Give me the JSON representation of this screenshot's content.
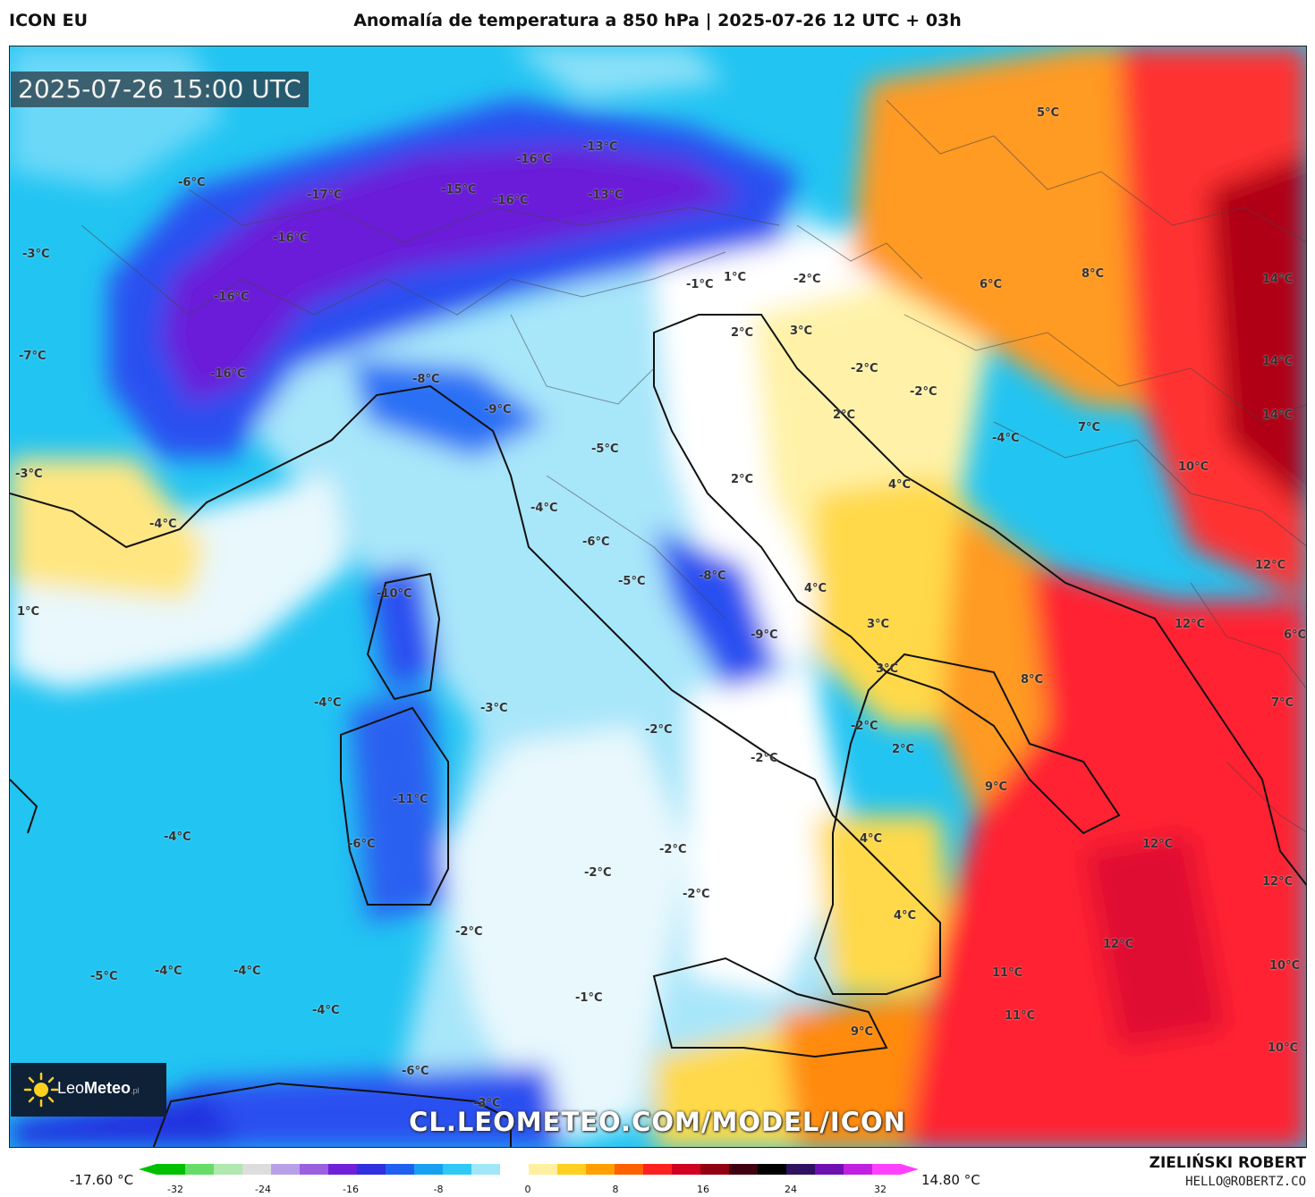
{
  "header": {
    "model": "ICON EU",
    "title": "Anomalía de temperatura a 850 hPa | 2025-07-26 12 UTC + 03h"
  },
  "map": {
    "timestamp": "2025-07-26 15:00 UTC",
    "url": "CL.LEOMETEO.COM/MODEL/ICON",
    "logo": {
      "name_light": "Leo",
      "name_bold": "Meteo",
      "suffix": ".pl",
      "icon": "sun-icon"
    },
    "labels": [
      {
        "text": "-6°C"
      },
      {
        "text": "-17°C"
      },
      {
        "text": "-16°C"
      },
      {
        "text": "-15°C"
      },
      {
        "text": "-16°C"
      },
      {
        "text": "-13°C"
      },
      {
        "text": "-13°C"
      },
      {
        "text": "-16°C"
      },
      {
        "text": "-16°C"
      },
      {
        "text": "-3°C"
      },
      {
        "text": "-7°C"
      },
      {
        "text": "-16°C"
      },
      {
        "text": "-8°C"
      },
      {
        "text": "-9°C"
      },
      {
        "text": "-5°C"
      },
      {
        "text": "-4°C"
      },
      {
        "text": "-6°C"
      },
      {
        "text": "-5°C"
      },
      {
        "text": "-8°C"
      },
      {
        "text": "-9°C"
      },
      {
        "text": "-3°C"
      },
      {
        "text": "-4°C"
      },
      {
        "text": "1°C"
      },
      {
        "text": "-10°C"
      },
      {
        "text": "-4°C"
      },
      {
        "text": "-3°C"
      },
      {
        "text": "-2°C"
      },
      {
        "text": "-2°C"
      },
      {
        "text": "-11°C"
      },
      {
        "text": "-6°C"
      },
      {
        "text": "-4°C"
      },
      {
        "text": "-2°C"
      },
      {
        "text": "-2°C"
      },
      {
        "text": "-2°C"
      },
      {
        "text": "-2°C"
      },
      {
        "text": "-5°C"
      },
      {
        "text": "-4°C"
      },
      {
        "text": "-4°C"
      },
      {
        "text": "-4°C"
      },
      {
        "text": "-1°C"
      },
      {
        "text": "-6°C"
      },
      {
        "text": "-3°C"
      },
      {
        "text": "5°C"
      },
      {
        "text": "1°C"
      },
      {
        "text": "-1°C"
      },
      {
        "text": "-2°C"
      },
      {
        "text": "6°C"
      },
      {
        "text": "8°C"
      },
      {
        "text": "14°C"
      },
      {
        "text": "2°C"
      },
      {
        "text": "3°C"
      },
      {
        "text": "-2°C"
      },
      {
        "text": "-2°C"
      },
      {
        "text": "2°C"
      },
      {
        "text": "14°C"
      },
      {
        "text": "7°C"
      },
      {
        "text": "-4°C"
      },
      {
        "text": "14°C"
      },
      {
        "text": "10°C"
      },
      {
        "text": "2°C"
      },
      {
        "text": "4°C"
      },
      {
        "text": "12°C"
      },
      {
        "text": "4°C"
      },
      {
        "text": "12°C"
      },
      {
        "text": "3°C"
      },
      {
        "text": "6°C"
      },
      {
        "text": "3°C"
      },
      {
        "text": "8°C"
      },
      {
        "text": "7°C"
      },
      {
        "text": "-2°C"
      },
      {
        "text": "2°C"
      },
      {
        "text": "9°C"
      },
      {
        "text": "4°C"
      },
      {
        "text": "12°C"
      },
      {
        "text": "12°C"
      },
      {
        "text": "4°C"
      },
      {
        "text": "12°C"
      },
      {
        "text": "10°C"
      },
      {
        "text": "11°C"
      },
      {
        "text": "11°C"
      },
      {
        "text": "9°C"
      },
      {
        "text": "10°C"
      }
    ]
  },
  "legend": {
    "min_label": "-17.60 °C",
    "max_label": "14.80 °C",
    "ticks": [
      "-32",
      "-24",
      "-16",
      "-8",
      "0",
      "8",
      "16",
      "24",
      "32"
    ],
    "colors": [
      "#00c000",
      "#66dd66",
      "#b0e8b0",
      "#dddddd",
      "#b8a0e8",
      "#9a60e0",
      "#7020d8",
      "#3030e0",
      "#2060f0",
      "#1aa0f0",
      "#30c8f5",
      "#a0e8f8",
      "#ffffff",
      "#fff0a0",
      "#ffd020",
      "#ffa000",
      "#ff6000",
      "#ff2020",
      "#d00020",
      "#900010",
      "#400010",
      "#000000",
      "#301060",
      "#7010b0",
      "#c020e0",
      "#ff40ff"
    ]
  },
  "footer": {
    "author": "ZIELIŃSKI ROBERT",
    "email": "HELLO@ROBERTZ.CO"
  },
  "palette": {
    "deep_purple": "#6a1ed8",
    "blue": "#2a50f0",
    "cyan": "#22c4f2",
    "light_cyan": "#a8e6fa",
    "white": "#ffffff",
    "yellow": "#ffd94a",
    "orange": "#ff8a10",
    "red": "#ff2030",
    "dark_red": "#b00018"
  }
}
